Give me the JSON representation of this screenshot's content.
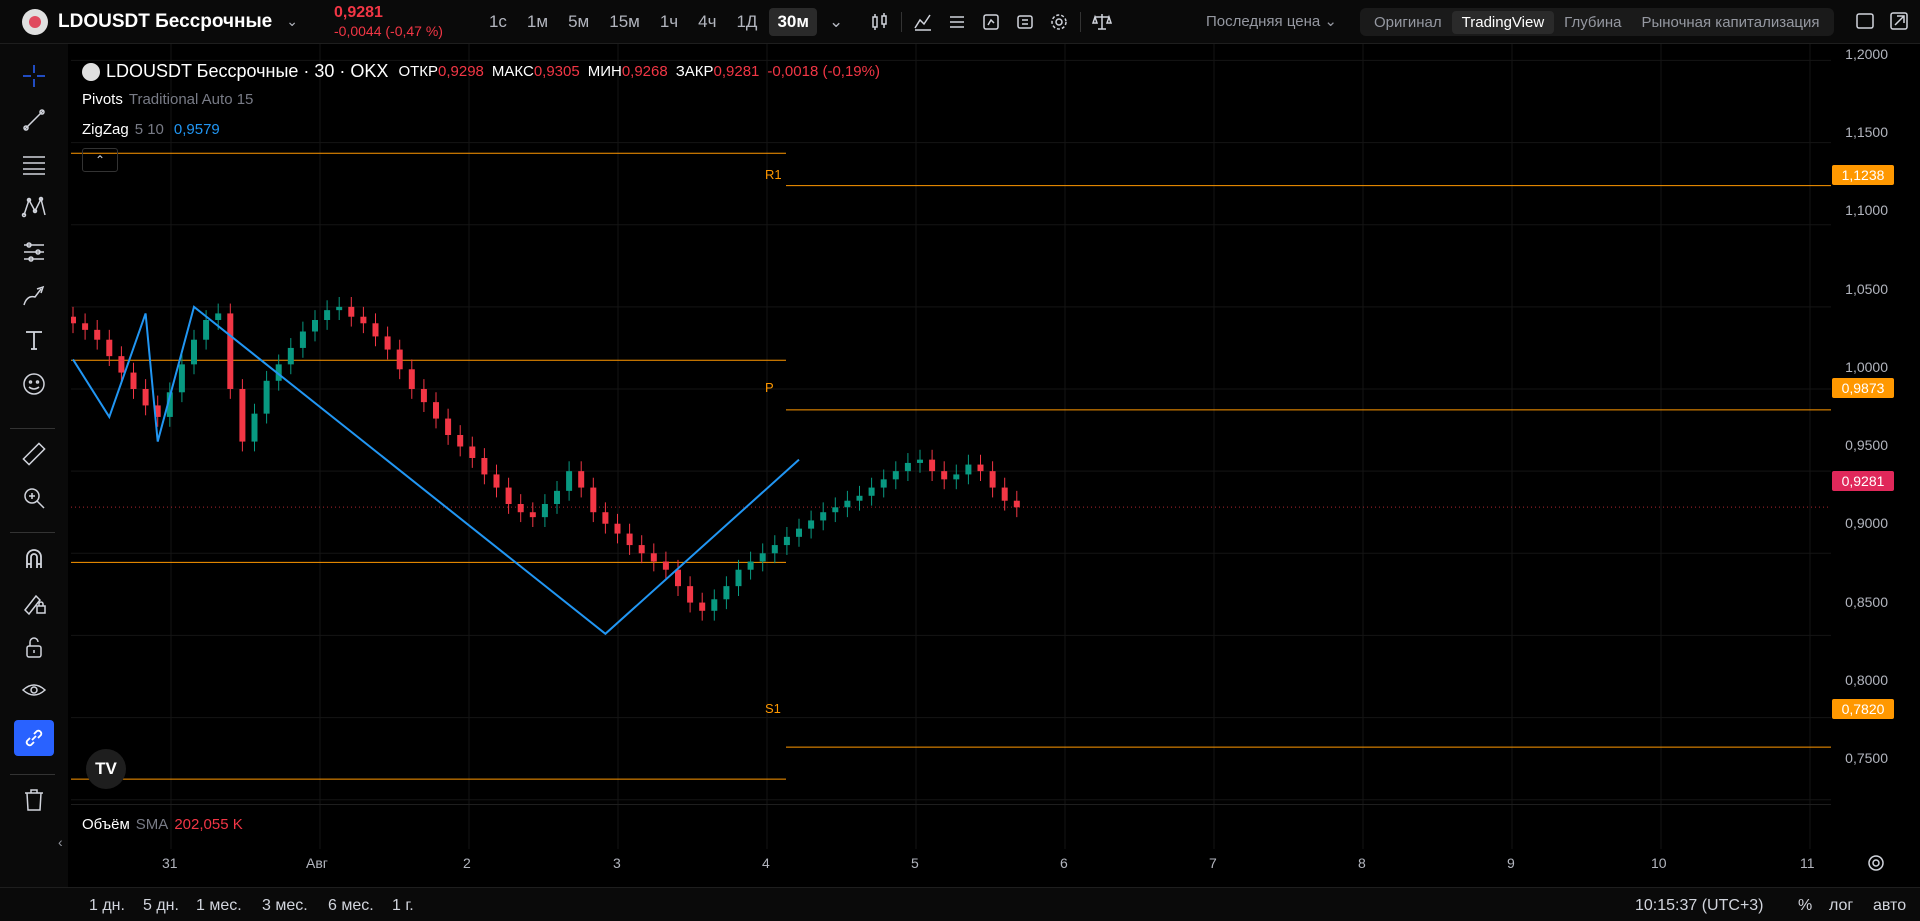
{
  "header": {
    "symbol": "LDOUSDT Бессрочные",
    "price": "0,9281",
    "change": "-0,0044 (-0,47 %)",
    "timeframes": [
      "1с",
      "1м",
      "5м",
      "15м",
      "1ч",
      "4ч",
      "1Д",
      "30м"
    ],
    "active_timeframe": "30м",
    "price_type": "Последняя цена",
    "modes": [
      "Оригинал",
      "TradingView",
      "Глубина",
      "Рыночная капитализация"
    ],
    "active_mode": "TradingView"
  },
  "legend": {
    "title": "LDOUSDT Бессрочные · 30 · OKX",
    "open_label": "ОТКР",
    "open": "0,9298",
    "high_label": "МАКС",
    "high": "0,9305",
    "low_label": "МИН",
    "low": "0,9268",
    "close_label": "ЗАКР",
    "close": "0,9281",
    "close_change": "-0,0018 (-0,19%)",
    "pivots_name": "Pivots",
    "pivots_params": "Traditional Auto 15",
    "zigzag_name": "ZigZag",
    "zigzag_params": "5 10",
    "zigzag_value": "0,9579",
    "volume_name": "Объём",
    "volume_sma": "SMA",
    "volume_value": "202,055 K"
  },
  "price_axis": [
    "1,2000",
    "1,1500",
    "1,1000",
    "1,0500",
    "1,0000",
    "0,9500",
    "0,9000",
    "0,8500",
    "0,8000",
    "0,7500"
  ],
  "price_tags": [
    {
      "label": "R1",
      "value": "1,1238",
      "color": "#ff9800"
    },
    {
      "label": "P",
      "value": "0,9873",
      "color": "#ff9800"
    },
    {
      "label": "",
      "value": "0,9281",
      "color": "#f23645"
    },
    {
      "label": "S1",
      "value": "0,7820",
      "color": "#ff9800"
    }
  ],
  "time_axis": [
    "31",
    "Авг",
    "2",
    "3",
    "4",
    "5",
    "6",
    "7",
    "8",
    "9",
    "10",
    "11"
  ],
  "ranges": [
    "1 дн.",
    "5 дн.",
    "1 мес.",
    "3 мес.",
    "6 мес.",
    "1 г."
  ],
  "footer": {
    "clock": "10:15:37 (UTC+3)",
    "percent": "%",
    "log": "лог",
    "auto": "авто"
  },
  "colors": {
    "up": "#089981",
    "down": "#f23645",
    "pivot": "#ff9800",
    "zigzag": "#2196f3"
  },
  "chart_data": {
    "type": "candlestick",
    "ylim": [
      0.72,
      1.21
    ],
    "pivot_levels": {
      "R1": 1.1238,
      "P": 0.9873,
      "S1": 0.782
    },
    "zigzag": [
      [
        0,
        1.018
      ],
      [
        3,
        0.983
      ],
      [
        6,
        1.046
      ],
      [
        7,
        0.968
      ],
      [
        10,
        1.05
      ],
      [
        44,
        0.851
      ],
      [
        60,
        0.957
      ]
    ],
    "closes": [
      1.04,
      1.036,
      1.03,
      1.02,
      1.01,
      1.0,
      0.99,
      0.983,
      0.998,
      1.015,
      1.03,
      1.042,
      1.046,
      1.0,
      0.968,
      0.985,
      1.005,
      1.015,
      1.025,
      1.035,
      1.042,
      1.048,
      1.05,
      1.044,
      1.04,
      1.032,
      1.024,
      1.012,
      1.0,
      0.992,
      0.982,
      0.972,
      0.965,
      0.958,
      0.948,
      0.94,
      0.93,
      0.925,
      0.922,
      0.93,
      0.938,
      0.95,
      0.94,
      0.925,
      0.918,
      0.912,
      0.905,
      0.9,
      0.895,
      0.89,
      0.88,
      0.87,
      0.865,
      0.872,
      0.88,
      0.89,
      0.895,
      0.9,
      0.905,
      0.91,
      0.915,
      0.92,
      0.925,
      0.928,
      0.932,
      0.935,
      0.94,
      0.945,
      0.95,
      0.955,
      0.957,
      0.95,
      0.945,
      0.948,
      0.954,
      0.95,
      0.94,
      0.932,
      0.928
    ]
  }
}
